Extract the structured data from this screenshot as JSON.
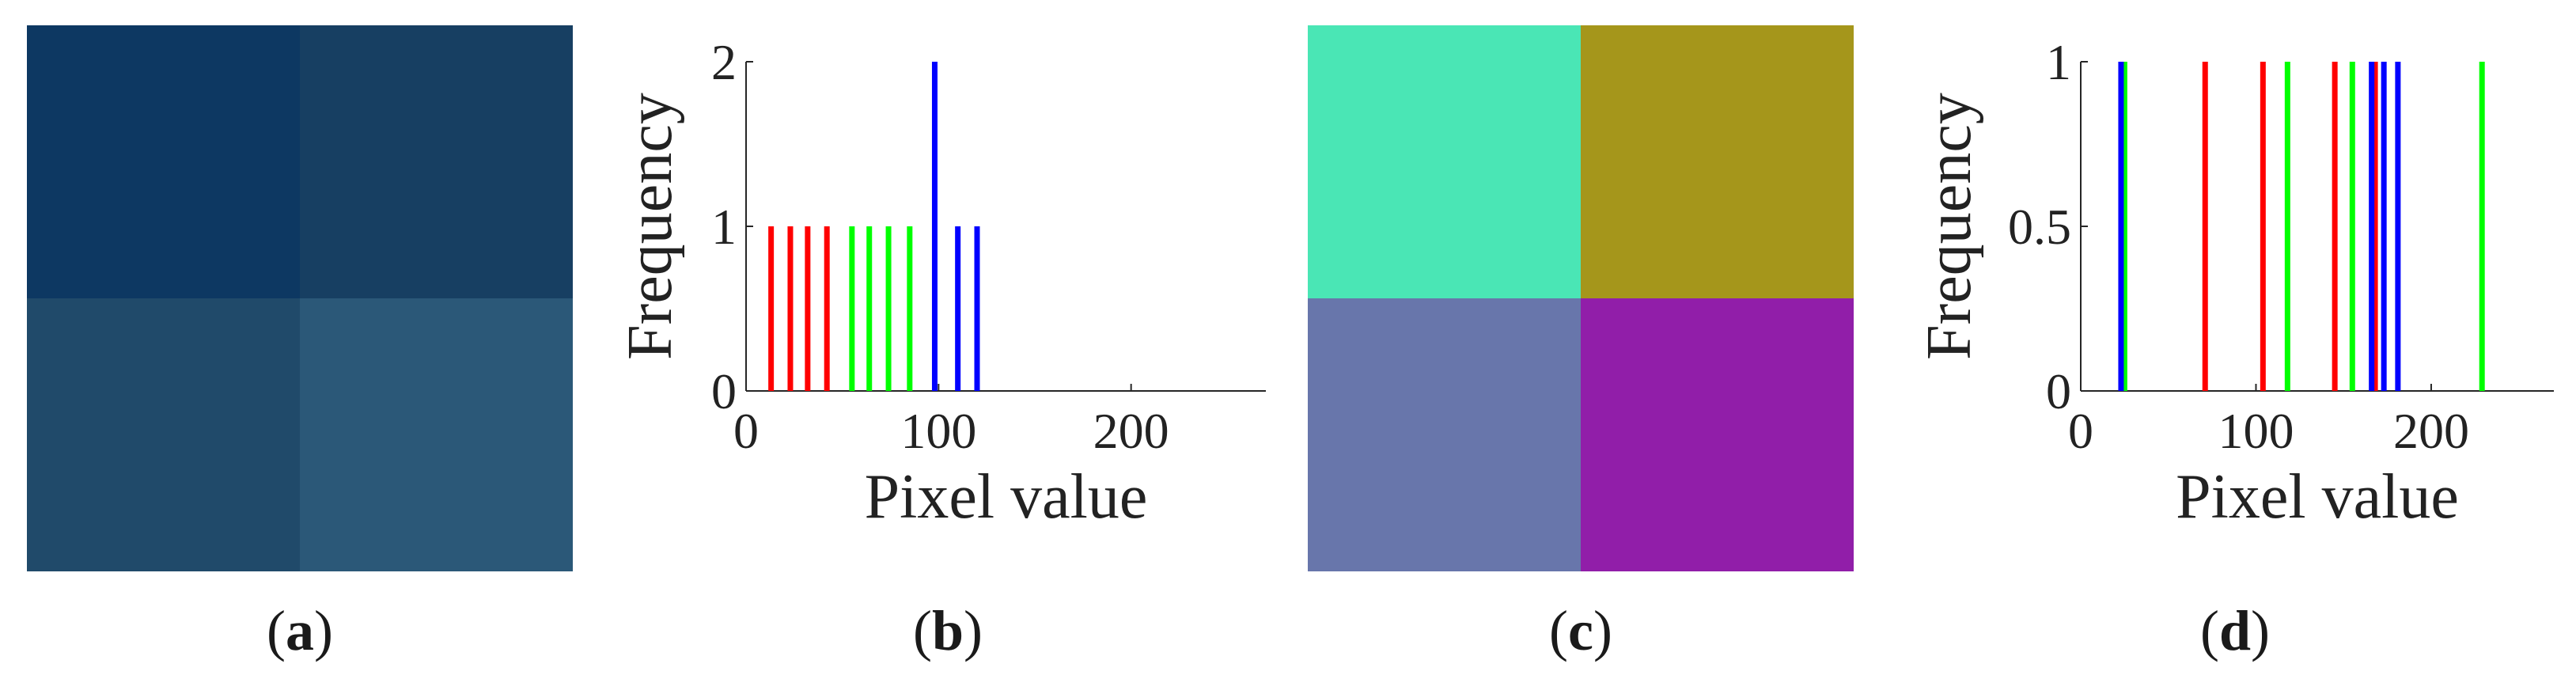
{
  "panels": {
    "a": {
      "caption_open": "(",
      "caption_letter": "a",
      "caption_close": ")",
      "cells": [
        "#0d3862",
        "#173f62",
        "#204a6a",
        "#2b5878"
      ]
    },
    "c": {
      "caption_open": "(",
      "caption_letter": "c",
      "caption_close": ")",
      "cells": [
        "#4ae6b5",
        "#a5961b",
        "#6876ab",
        "#911ea9"
      ]
    },
    "b": {
      "caption_open": "(",
      "caption_letter": "b",
      "caption_close": ")"
    },
    "d": {
      "caption_open": "(",
      "caption_letter": "d",
      "caption_close": ")"
    }
  },
  "chart_data": [
    {
      "id": "b",
      "type": "bar",
      "xlabel": "Pixel value",
      "ylabel": "Frequency",
      "xlim": [
        0,
        270
      ],
      "ylim": [
        0,
        2
      ],
      "xticks": [
        0,
        100,
        200
      ],
      "yticks": [
        0,
        1,
        2
      ],
      "yticklabels": [
        "0",
        "1",
        "2"
      ],
      "colors": {
        "red": "#ff0000",
        "green": "#00ff00",
        "blue": "#0000ff"
      },
      "series": [
        {
          "color": "red",
          "x": [
            13,
            23,
            32,
            42
          ],
          "values": [
            1,
            1,
            1,
            1
          ]
        },
        {
          "color": "green",
          "x": [
            55,
            64,
            74,
            85
          ],
          "values": [
            1,
            1,
            1,
            1
          ]
        },
        {
          "color": "blue",
          "x": [
            98,
            110,
            120
          ],
          "values": [
            2,
            1,
            1
          ]
        }
      ]
    },
    {
      "id": "d",
      "type": "bar",
      "xlabel": "Pixel value",
      "ylabel": "Frequency",
      "xlim": [
        0,
        270
      ],
      "ylim": [
        0,
        1
      ],
      "xticks": [
        0,
        100,
        200
      ],
      "yticks": [
        0,
        0.5,
        1
      ],
      "yticklabels": [
        "0",
        "0.5",
        "1"
      ],
      "colors": {
        "red": "#ff0000",
        "green": "#00ff00",
        "blue": "#0000ff"
      },
      "series": [
        {
          "color": "red",
          "x": [
            71,
            104,
            145,
            168
          ],
          "values": [
            1,
            1,
            1,
            1
          ]
        },
        {
          "color": "green",
          "x": [
            25,
            118,
            155,
            229
          ],
          "values": [
            1,
            1,
            1,
            1
          ]
        },
        {
          "color": "blue",
          "x": [
            23,
            166,
            173,
            181
          ],
          "values": [
            1,
            1,
            1,
            1
          ]
        }
      ]
    }
  ]
}
